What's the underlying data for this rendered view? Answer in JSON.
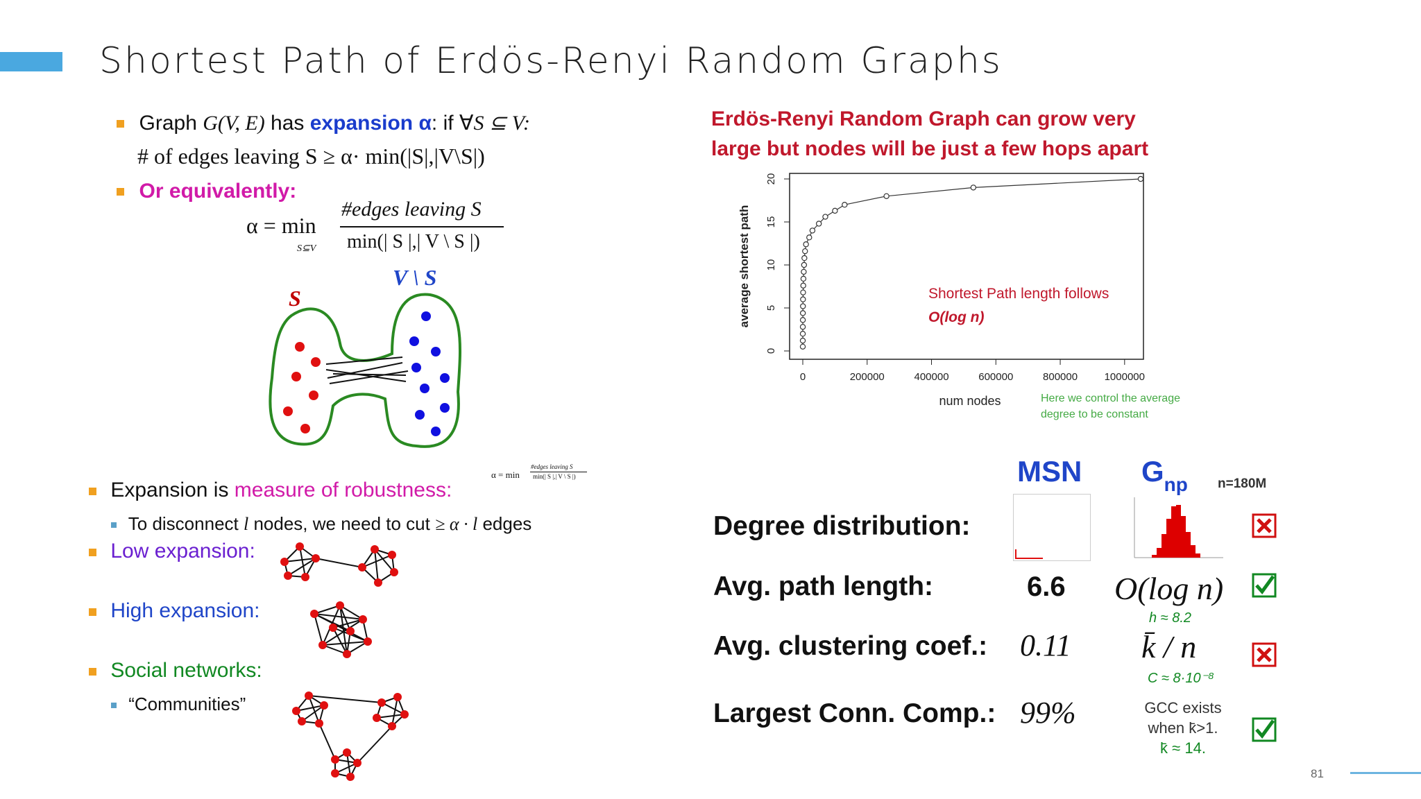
{
  "title": "Shortest Path of Erdös-Renyi Random Graphs",
  "page_number": "81",
  "left": {
    "graph_prefix": "Graph ",
    "graph_gve": "G(V, E)",
    "graph_has": " has ",
    "expansion_label": "expansion α",
    "graph_if": ": if ∀",
    "graph_scond": "S ⊆ V:",
    "edges_leaving_line": "# of edges leaving S ≥ α· min(|S|,|V\\S|)",
    "or_equivalently": "Or equivalently:",
    "formula_alpha": "α = min",
    "formula_sub": "S⊆V",
    "formula_num": "#edges leaving S",
    "formula_den": "min(| S |,| V \\ S |)",
    "label_S": "S",
    "label_VS": "V \\ S",
    "small_formula": "α = min #edges leaving S / min(|S|,|V\\S|)",
    "expansion_is": "Expansion is ",
    "measure_robustness": "measure of robustness:",
    "disconnect_prefix": "To disconnect ",
    "disconnect_l": "l",
    "disconnect_mid": " nodes, we need to cut ",
    "disconnect_expr": "≥ α · l",
    "disconnect_suffix": " edges",
    "low_expansion": "Low expansion:",
    "high_expansion": "High expansion:",
    "social_networks": "Social networks:",
    "communities": "“Communities”"
  },
  "right": {
    "headline_line1": "Erdös-Renyi Random Graph can grow very",
    "headline_line2": "large but nodes will be just a few hops apart",
    "chart_note_line1": "Shortest Path length follows",
    "chart_note_line2": "O(log n)",
    "side_note_line1": "Here we control the average",
    "side_note_line2": "degree to be constant",
    "col_msn": "MSN",
    "col_gnp_main": "G",
    "col_gnp_sub": "np",
    "n_label": "n=180M",
    "rows": [
      {
        "label": "Degree distribution:",
        "msn": "",
        "gnp": "",
        "note": "",
        "mark": "cross"
      },
      {
        "label": "Avg. path length:",
        "msn": "6.6",
        "gnp": "O(log n)",
        "note": "h ≈ 8.2",
        "mark": "check"
      },
      {
        "label": "Avg. clustering coef.:",
        "msn": "0.11",
        "gnp": "k̄ / n",
        "note": "C ≈ 8·10⁻⁸",
        "mark": "cross"
      },
      {
        "label": "Largest Conn. Comp.:",
        "msn": "99%",
        "gnp": "",
        "note": "",
        "mark": "check"
      }
    ],
    "gcc_line1": "GCC exists",
    "gcc_line2": "when k̄>1.",
    "gcc_line3": "k̄ ≈ 14."
  },
  "chart_data": {
    "type": "scatter",
    "title": "",
    "xlabel": "num nodes",
    "ylabel": "average shortest path",
    "xlim": [
      0,
      1050000
    ],
    "ylim": [
      0,
      20
    ],
    "x_ticks": [
      "0",
      "200000",
      "400000",
      "600000",
      "800000",
      "1000000"
    ],
    "y_ticks": [
      "0",
      "5",
      "10",
      "15",
      "20"
    ],
    "series": [
      {
        "x": [
          10,
          20,
          50,
          100,
          200,
          300,
          500,
          700,
          1000,
          1500,
          2000,
          3000,
          4000,
          5000,
          7000,
          10000,
          20000,
          30000,
          50000,
          70000,
          100000,
          130000,
          260000,
          530000,
          1050000
        ],
        "y": [
          0.5,
          1.2,
          2.0,
          2.8,
          3.6,
          4.4,
          5.2,
          6.0,
          6.8,
          7.6,
          8.4,
          9.2,
          10.0,
          10.8,
          11.6,
          12.4,
          13.2,
          14.0,
          14.8,
          15.6,
          16.3,
          17.0,
          18.0,
          19.0,
          20.0
        ]
      }
    ]
  },
  "colors": {
    "accent": "#4aa8e0",
    "headline_red": "#c0182c",
    "check_green": "#118822",
    "cross_red": "#d01010"
  }
}
